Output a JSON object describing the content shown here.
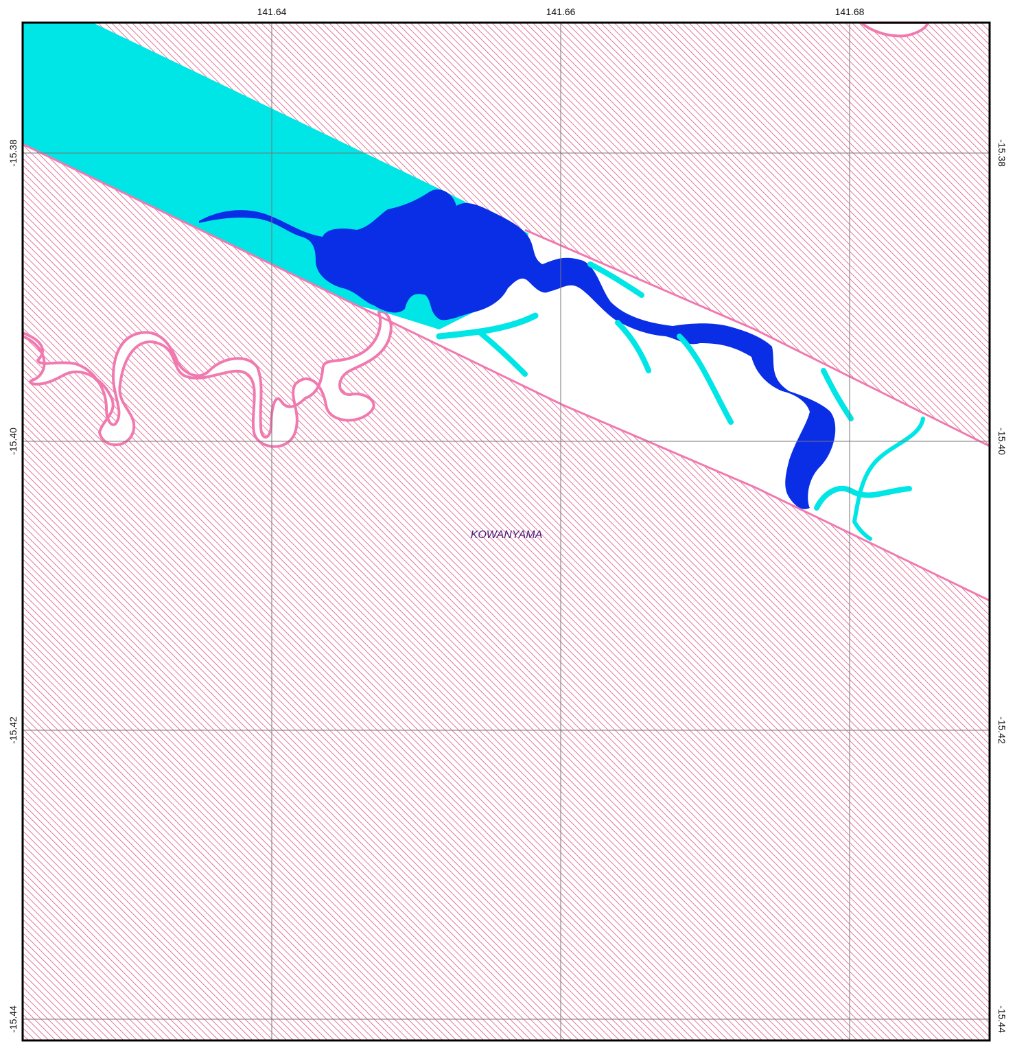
{
  "map": {
    "place_label": "KOWANYAMA",
    "longitude_ticks": [
      "141.64",
      "141.66",
      "141.68"
    ],
    "latitude_ticks": [
      "-15.38",
      "-15.40",
      "-15.42",
      "-15.44"
    ]
  },
  "colors": {
    "hatch": "#e0527e",
    "boundary": "#f07ab0",
    "light_water": "#00e5e5",
    "deep_water": "#0a2ee6",
    "grid": "#777777",
    "label": "#4a1a7a"
  }
}
